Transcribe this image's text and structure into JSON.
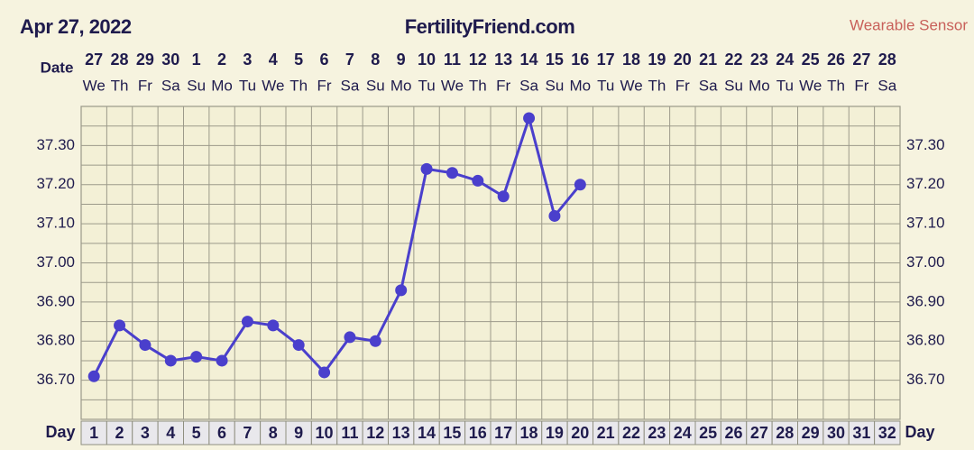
{
  "chart_data": {
    "type": "line",
    "date": "Apr 27, 2022",
    "title": "FertilityFriend.com",
    "subtitle": "Wearable Sensor",
    "date_label": "Date",
    "day_label": "Day",
    "x": [
      1,
      2,
      3,
      4,
      5,
      6,
      7,
      8,
      9,
      10,
      11,
      12,
      13,
      14,
      15,
      16,
      17,
      18,
      19,
      20,
      21,
      22,
      23,
      24,
      25,
      26,
      27,
      28,
      29,
      30,
      31,
      32
    ],
    "dates": [
      "27",
      "28",
      "29",
      "30",
      "1",
      "2",
      "3",
      "4",
      "5",
      "6",
      "7",
      "8",
      "9",
      "10",
      "11",
      "12",
      "13",
      "14",
      "15",
      "16",
      "17",
      "18",
      "19",
      "20",
      "21",
      "22",
      "23",
      "24",
      "25",
      "26",
      "27",
      "28"
    ],
    "weekdays": [
      "We",
      "Th",
      "Fr",
      "Sa",
      "Su",
      "Mo",
      "Tu",
      "We",
      "Th",
      "Fr",
      "Sa",
      "Su",
      "Mo",
      "Tu",
      "We",
      "Th",
      "Fr",
      "Sa",
      "Su",
      "Mo",
      "Tu",
      "We",
      "Th",
      "Fr",
      "Sa",
      "Su",
      "Mo",
      "Tu",
      "We",
      "Th",
      "Fr",
      "Sa"
    ],
    "series": [
      {
        "color": "#4a3fcc",
        "values": [
          36.71,
          36.84,
          36.79,
          36.75,
          36.76,
          36.75,
          36.85,
          36.84,
          36.79,
          36.72,
          36.81,
          36.8,
          36.93,
          37.24,
          37.23,
          37.21,
          37.17,
          37.37,
          37.12,
          37.2,
          null,
          null,
          null,
          null,
          null,
          null,
          null,
          null,
          null,
          null,
          null,
          null
        ]
      }
    ],
    "xlim": [
      0.5,
      32.5
    ],
    "ylim": [
      36.6,
      37.4
    ],
    "yticks": [
      {
        "value": 36.7,
        "label": "36.70"
      },
      {
        "value": 36.8,
        "label": "36.80"
      },
      {
        "value": 36.9,
        "label": "36.90"
      },
      {
        "value": 37.0,
        "label": "37.00"
      },
      {
        "value": 37.1,
        "label": "37.10"
      },
      {
        "value": 37.2,
        "label": "37.20"
      },
      {
        "value": 37.3,
        "label": "37.30"
      }
    ],
    "ygrid": [
      36.6,
      36.65,
      36.7,
      36.75,
      36.8,
      36.85,
      36.9,
      36.95,
      37.0,
      37.05,
      37.1,
      37.15,
      37.2,
      37.25,
      37.3,
      37.35,
      37.4
    ],
    "grid": true
  }
}
